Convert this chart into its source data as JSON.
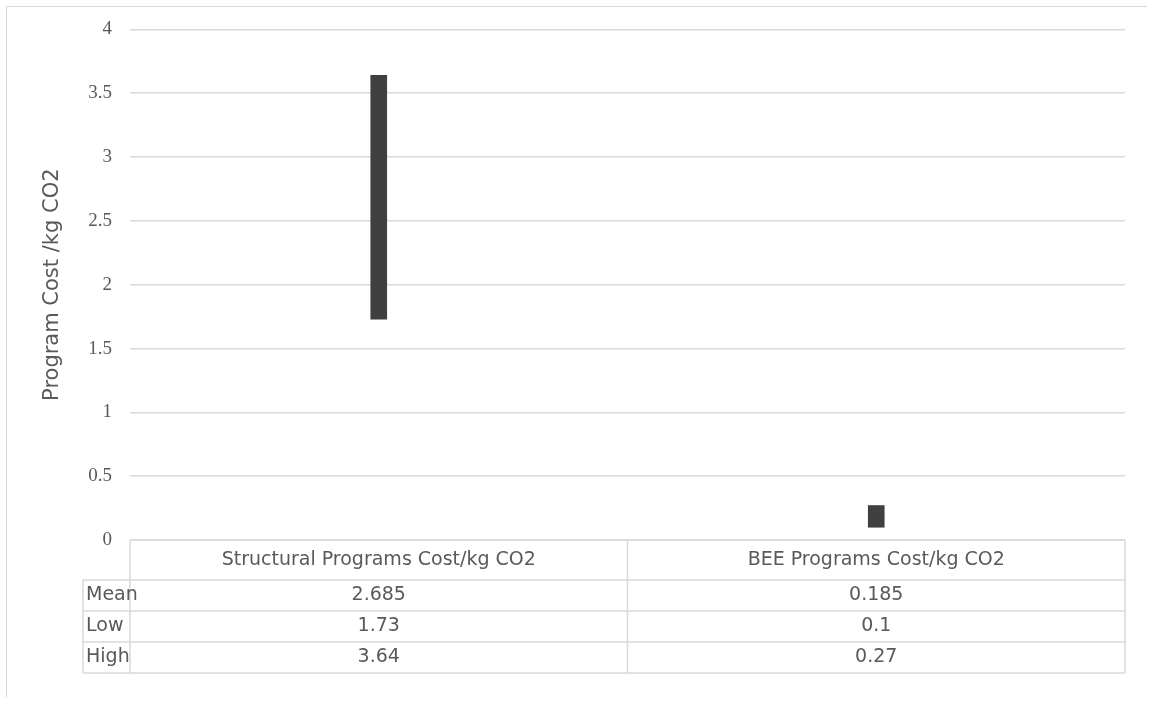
{
  "chart_data": {
    "type": "bar",
    "ylabel": "Program Cost /kg CO2",
    "categories": [
      "Structural Programs Cost/kg CO2",
      "BEE Programs Cost/kg CO2"
    ],
    "base": [
      1.73,
      0.1
    ],
    "values": [
      1.91,
      0.17
    ],
    "color": "#404040",
    "ylim": [
      0,
      4
    ],
    "yticks": [
      0,
      0.5,
      1,
      1.5,
      2,
      2.5,
      3,
      3.5,
      4
    ],
    "grid": "y",
    "legend": false,
    "annotations": [
      "Mean",
      "2.685",
      "0.185",
      "Low",
      "1.73",
      "0.1",
      "High",
      "3.64",
      "0.27"
    ]
  }
}
